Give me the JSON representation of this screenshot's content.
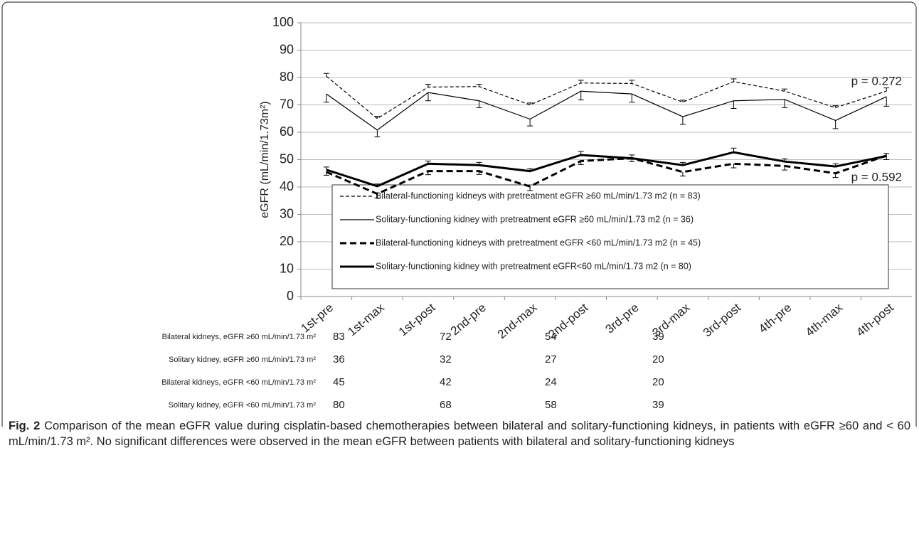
{
  "chart_data": {
    "type": "line",
    "y_label": "eGFR (mL/min/1.73m²)",
    "categories": [
      "1st-pre",
      "1st-max",
      "1st-post",
      "2nd-pre",
      "2nd-max",
      "2nd-post",
      "3rd-pre",
      "3rd-max",
      "3rd-post",
      "4th-pre",
      "4th-max",
      "4th-post"
    ],
    "ylim": [
      0,
      100
    ],
    "yticks": [
      0,
      10,
      20,
      30,
      40,
      50,
      60,
      70,
      80,
      90,
      100
    ],
    "grid": true,
    "series": [
      {
        "name": "Bilateral-functioning kidneys with pretreatment eGFR ≥60 mL/min/1.73 m2  (n = 83)",
        "color": "#000000",
        "dashed": true,
        "width": 1.2,
        "error_direction": "up",
        "values": [
          80.5,
          65,
          76.5,
          76.7,
          70,
          78,
          77.8,
          71,
          78.5,
          75,
          69,
          75
        ],
        "errors": [
          1,
          0.8,
          1,
          0.8,
          0.7,
          1,
          1.2,
          0.7,
          1,
          0.8,
          0.7,
          1.2
        ]
      },
      {
        "name": "Solitary-functioning kidney with pretreatment eGFR ≥60 mL/min/1.73 m2 (n = 36)",
        "color": "#000000",
        "dashed": false,
        "width": 1.2,
        "error_direction": "down",
        "values": [
          74,
          60.8,
          74.5,
          71.5,
          64.8,
          75,
          74,
          65.7,
          71.5,
          72,
          64.3,
          73
        ],
        "errors": [
          3,
          2.5,
          3,
          2.5,
          2.5,
          3.2,
          3,
          2.8,
          2.8,
          3,
          3,
          3.5
        ]
      },
      {
        "name": "Bilateral-functioning kidneys with pretreatment eGFR <60 mL/min/1.73 m2  (n = 45)",
        "color": "#000000",
        "dashed": true,
        "width": 3,
        "error_direction": "down",
        "values": [
          45.5,
          37.5,
          45.8,
          45.8,
          40.2,
          49.5,
          50.5,
          45.5,
          48.5,
          47.7,
          45,
          51.5
        ],
        "errors": [
          1.2,
          1.5,
          1.3,
          1.2,
          1.5,
          1.3,
          1.2,
          1.5,
          1.5,
          1.5,
          1.5,
          1.5
        ]
      },
      {
        "name": "Solitary-functioning kidney with pretreatment eGFR<60 mL/min/1.73 m2 (n = 80)",
        "color": "#000000",
        "dashed": false,
        "width": 3,
        "error_direction": "up",
        "values": [
          46.3,
          40.3,
          48.5,
          48,
          45.8,
          51.7,
          50.5,
          48,
          52.7,
          49.3,
          47.5,
          51.3
        ],
        "errors": [
          1,
          0.8,
          1,
          1,
          0.9,
          1.3,
          1.2,
          1,
          1.5,
          1,
          1,
          1
        ]
      }
    ],
    "annotations": [
      "p = 0.272",
      "p = 0.592"
    ]
  },
  "table": {
    "rows": [
      {
        "label": "Bilateral kidneys, eGFR ≥60 mL/min/1.73 m²",
        "values": [
          83,
          72,
          54,
          39
        ]
      },
      {
        "label": "Solitary kidney, eGFR ≥60 mL/min/1.73 m²",
        "values": [
          36,
          32,
          27,
          20
        ]
      },
      {
        "label": "Bilateral kidneys, eGFR <60 mL/min/1.73 m²",
        "values": [
          45,
          42,
          24,
          20
        ]
      },
      {
        "label": "Solitary kidney, eGFR <60 mL/min/1.73 m²",
        "values": [
          80,
          68,
          58,
          39
        ]
      }
    ]
  },
  "caption": {
    "label": "Fig. 2",
    "text": "Comparison of the mean eGFR value during cisplatin-based chemotherapies between bilateral and solitary-functioning kidneys, in patients with eGFR ≥60 and < 60 mL/min/1.73 m². No significant differences were observed in the mean eGFR between patients with bilateral and solitary-functioning kidneys"
  }
}
